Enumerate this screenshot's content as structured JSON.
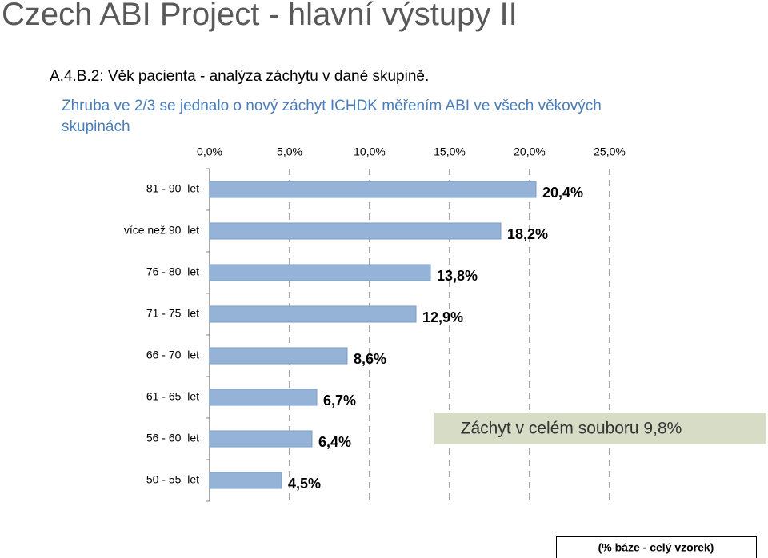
{
  "title": "Czech ABI Project - hlavní výstupy II",
  "subtitle": "A.4.B.2:  Věk pacienta - analýza záchytu v dané skupině.",
  "description": "Zhruba ve 2/3 se jednalo o nový záchyt ICHDK měřením ABI ve všech věkových skupinách",
  "chart_data": {
    "type": "bar",
    "orientation": "horizontal",
    "categories": [
      "81 - 90  let",
      "více než 90  let",
      "76 - 80  let",
      "71 - 75  let",
      "66 - 70  let",
      "61 - 65  let",
      "56 - 60  let",
      "50 - 55  let"
    ],
    "values": [
      20.4,
      18.2,
      13.8,
      12.9,
      8.6,
      6.7,
      6.4,
      4.5
    ],
    "value_labels": [
      "20,4%",
      "18,2%",
      "13,8%",
      "12,9%",
      "8,6%",
      "6,7%",
      "6,4%",
      "4,5%"
    ],
    "color": "#95b3d7",
    "xlim": [
      0,
      25
    ],
    "xticks": [
      {
        "value": 0,
        "label": "0,0%"
      },
      {
        "value": 5,
        "label": "5,0%"
      },
      {
        "value": 10,
        "label": "10,0%"
      },
      {
        "value": 15,
        "label": "15,0%"
      },
      {
        "value": 20,
        "label": "20,0%"
      },
      {
        "value": 25,
        "label": "25,0%"
      }
    ],
    "grid": true,
    "annotation": "Záchyt v celém souboru 9,8%",
    "note": "(% báze - celý vzorek)"
  }
}
